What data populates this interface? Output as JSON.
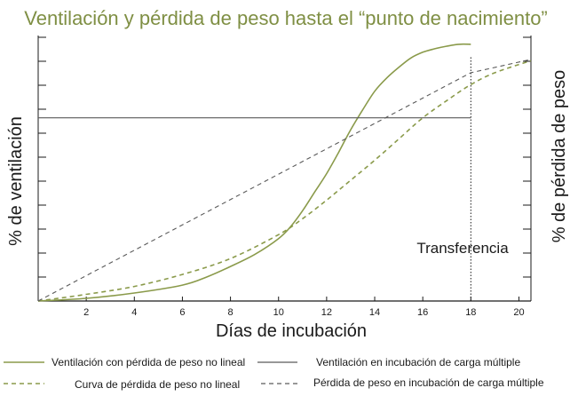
{
  "chart_data": {
    "type": "line",
    "title": "Ventilación y pérdida de peso hasta el “punto de nacimiento”",
    "xlabel": "Días de incubación",
    "ylabel_left": "% de ventilación",
    "ylabel_right": "% de pérdida de peso",
    "xlim": [
      0,
      20.5
    ],
    "ylim": [
      0,
      100
    ],
    "x_ticks": [
      2,
      4,
      6,
      8,
      10,
      12,
      14,
      16,
      18,
      20
    ],
    "grid": false,
    "annotation": {
      "text": "Transferencia",
      "x": 18
    },
    "colors": {
      "olive": "#8a9a4a",
      "gray": "#5a5a5a",
      "title": "#7f8f44"
    },
    "series": [
      {
        "name": "Ventilación con pérdida de peso no lineal",
        "style": "solid",
        "color": "#8a9a4a",
        "x": [
          0,
          2,
          4,
          6,
          7,
          8,
          9,
          10,
          10.5,
          11,
          11.5,
          12,
          12.5,
          13,
          13.5,
          14,
          14.5,
          15,
          15.5,
          16,
          16.5,
          17,
          17.5,
          18
        ],
        "y": [
          0,
          1,
          3,
          6,
          9,
          13,
          17.5,
          23.5,
          28,
          34,
          41,
          48,
          56,
          64.5,
          72,
          79,
          84,
          88,
          91.5,
          93.7,
          95,
          96,
          96.7,
          96.7
        ]
      },
      {
        "name": "Ventilación en incubación de carga múltiple",
        "style": "solid",
        "color": "#5a5a5a",
        "x": [
          0,
          18
        ],
        "y": [
          69,
          69
        ]
      },
      {
        "name": "Curva de pérdida de peso no lineal",
        "style": "dashed",
        "color": "#8a9a4a",
        "x": [
          0,
          2,
          4,
          6,
          8,
          10,
          11,
          12,
          13,
          14,
          15,
          16,
          17,
          18,
          19,
          20.5
        ],
        "y": [
          0,
          2.5,
          5.5,
          10,
          16,
          25,
          31,
          38,
          45.5,
          53,
          61,
          69,
          75.5,
          81.5,
          86,
          90.5
        ]
      },
      {
        "name": "Pérdida de peso en incubación de carga múltiple",
        "style": "dashed",
        "color": "#5a5a5a",
        "x": [
          0,
          18,
          20.5
        ],
        "y": [
          0,
          86,
          91
        ]
      }
    ]
  }
}
